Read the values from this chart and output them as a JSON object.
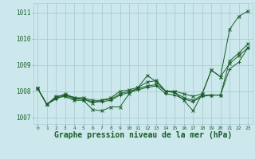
{
  "title": "Graphe pression niveau de la mer (hPa)",
  "bg_color": "#cce8ec",
  "grid_color": "#aacdd4",
  "line_color": "#1a5c28",
  "series": [
    {
      "y": [
        1008.1,
        1007.5,
        1007.8,
        1007.85,
        1007.75,
        1007.7,
        1007.55,
        1007.65,
        1007.75,
        1008.0,
        1008.05,
        1008.15,
        1008.35,
        1008.4,
        1008.0,
        1008.0,
        1007.9,
        1007.8,
        1007.9,
        1008.8,
        1008.55,
        1009.05,
        1009.35,
        1009.65
      ],
      "marker": "x"
    },
    {
      "y": [
        1008.1,
        1007.5,
        1007.75,
        1007.9,
        1007.75,
        1007.75,
        1007.65,
        1007.65,
        1007.7,
        1007.9,
        1008.0,
        1008.1,
        1008.2,
        1008.25,
        1008.0,
        1007.95,
        1007.75,
        1007.65,
        1007.85,
        1007.85,
        1007.85,
        1009.15,
        1009.45,
        1009.8
      ],
      "marker": "x"
    },
    {
      "y": [
        1008.1,
        1007.5,
        1007.7,
        1007.85,
        1007.7,
        1007.7,
        1007.6,
        1007.6,
        1007.65,
        1007.85,
        1007.95,
        1008.05,
        1008.15,
        1008.2,
        1007.9,
        1007.85,
        1007.7,
        1007.6,
        1007.8,
        1007.85,
        1007.85,
        1008.85,
        1009.1,
        1009.65
      ],
      "marker": "+"
    },
    {
      "y": [
        1008.1,
        1007.5,
        1007.75,
        1007.8,
        1007.65,
        1007.65,
        1007.3,
        1007.25,
        1007.4,
        1007.4,
        1007.9,
        1008.15,
        1008.6,
        1008.35,
        1008.0,
        1007.95,
        1007.65,
        1007.25,
        1007.9,
        1008.8,
        1008.55,
        1010.35,
        1010.85,
        1011.05
      ],
      "marker": "x"
    }
  ],
  "xlim": [
    -0.5,
    23.5
  ],
  "ylim": [
    1006.75,
    1011.35
  ],
  "yticks": [
    1007,
    1008,
    1009,
    1010,
    1011
  ],
  "xticks": [
    0,
    1,
    2,
    3,
    4,
    5,
    6,
    7,
    8,
    9,
    10,
    11,
    12,
    13,
    14,
    15,
    16,
    17,
    18,
    19,
    20,
    21,
    22,
    23
  ]
}
